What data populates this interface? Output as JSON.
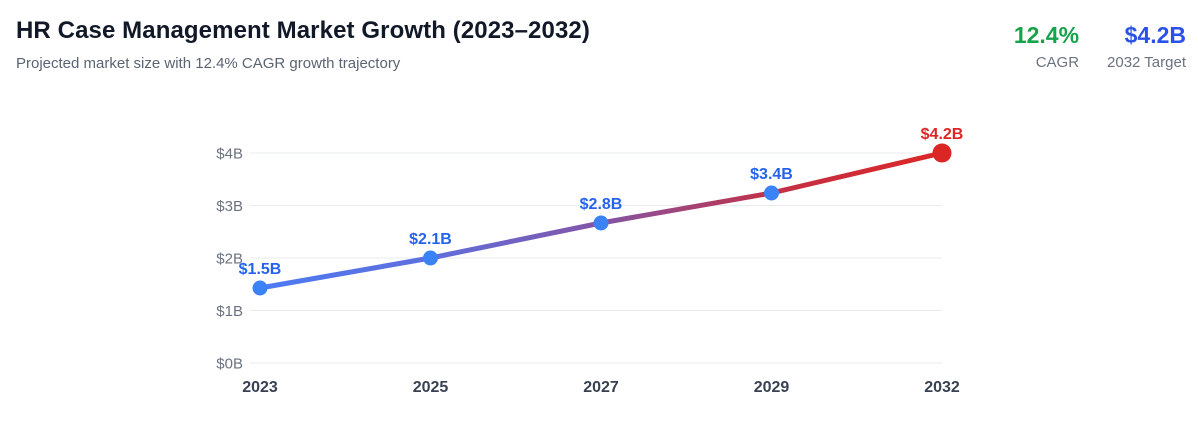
{
  "header": {
    "title": "HR Case Management Market Growth (2023–2032)",
    "subtitle": "Projected market size with 12.4% CAGR growth trajectory",
    "stats": [
      {
        "value": "12.4%",
        "label": "CAGR",
        "color": "#16a34a"
      },
      {
        "value": "$4.2B",
        "label": "2032 Target",
        "color": "#2b52e8"
      }
    ]
  },
  "chart_data": {
    "type": "line",
    "title": "HR Case Management Market Growth (2023–2032)",
    "categories": [
      "2023",
      "2025",
      "2027",
      "2029",
      "2032"
    ],
    "series": [
      {
        "name": "Projected market size ($B)",
        "values": [
          1.5,
          2.1,
          2.8,
          3.4,
          4.2
        ]
      }
    ],
    "point_labels": [
      "$1.5B",
      "$2.1B",
      "$2.8B",
      "$3.4B",
      "$4.2B"
    ],
    "y_ticks": [
      "$0B",
      "$1B",
      "$2B",
      "$3B",
      "$4B"
    ],
    "ylim": [
      0,
      4.2
    ],
    "xlabel": "",
    "ylabel": "",
    "grid": true,
    "legend": "none",
    "colors": {
      "grid": "#e9ebef",
      "axis_label": "#6b7280",
      "x_label": "#374151",
      "point": "#3b82f6",
      "point_final": "#dc2626",
      "label": "#2563eb",
      "label_final": "#dc2626"
    },
    "line_gradient": [
      {
        "offset": "0%",
        "color": "#4c7bf3"
      },
      {
        "offset": "25%",
        "color": "#5f6edd"
      },
      {
        "offset": "50%",
        "color": "#8355a6"
      },
      {
        "offset": "75%",
        "color": "#c23146"
      },
      {
        "offset": "100%",
        "color": "#dc2626"
      }
    ]
  }
}
